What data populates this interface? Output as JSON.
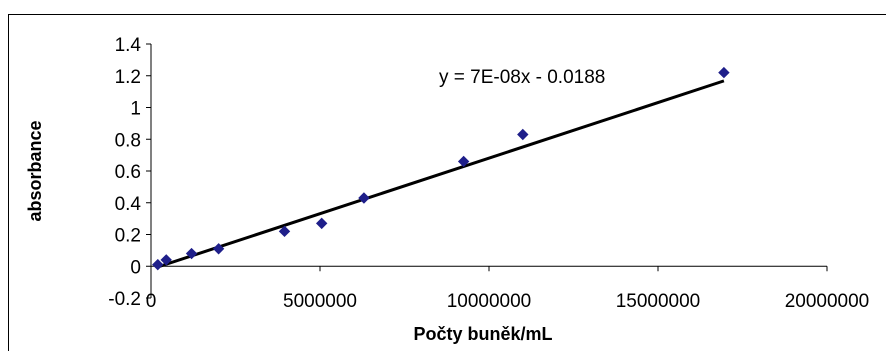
{
  "chart_data": {
    "type": "scatter",
    "title": "",
    "xlabel": "Počty buněk/mL",
    "ylabel": "absorbance",
    "xlim": [
      0,
      20000000
    ],
    "ylim": [
      -0.2,
      1.4
    ],
    "x_ticks": [
      0,
      5000000,
      10000000,
      15000000,
      20000000
    ],
    "x_tick_labels": [
      "0",
      "5000000",
      "10000000",
      "15000000",
      "20000000"
    ],
    "y_ticks": [
      -0.2,
      0,
      0.2,
      0.4,
      0.6,
      0.8,
      1,
      1.2,
      1.4
    ],
    "y_tick_labels": [
      "-0.2",
      "0",
      "0.2",
      "0.4",
      "0.6",
      "0.8",
      "1",
      "1.2",
      "1.4"
    ],
    "grid": false,
    "series": [
      {
        "marker": "diamond",
        "color": "#1f1f8a",
        "points": [
          {
            "x": 200000,
            "y": 0.01
          },
          {
            "x": 450000,
            "y": 0.04
          },
          {
            "x": 1200000,
            "y": 0.08
          },
          {
            "x": 2000000,
            "y": 0.11
          },
          {
            "x": 3950000,
            "y": 0.22
          },
          {
            "x": 5050000,
            "y": 0.27
          },
          {
            "x": 6300000,
            "y": 0.43
          },
          {
            "x": 9250000,
            "y": 0.66
          },
          {
            "x": 11000000,
            "y": 0.83
          },
          {
            "x": 16950000,
            "y": 1.22
          }
        ]
      }
    ],
    "trendline": {
      "slope": 7e-08,
      "intercept": -0.0188,
      "x_range": [
        200000,
        16950000
      ],
      "color": "#000000",
      "equation_label": "y = 7E-08x - 0.0188"
    }
  }
}
